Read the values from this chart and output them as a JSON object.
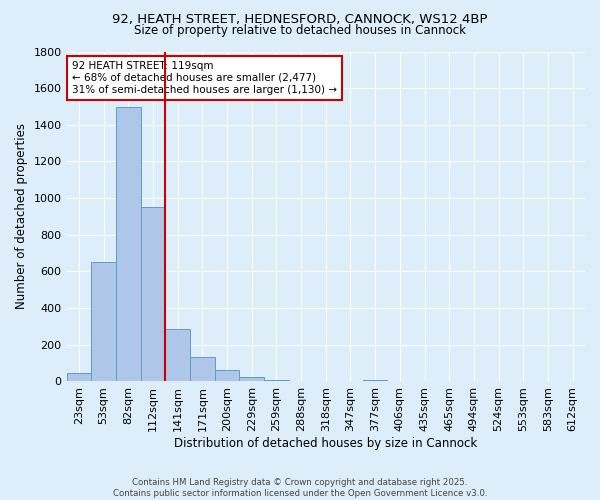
{
  "title_line1": "92, HEATH STREET, HEDNESFORD, CANNOCK, WS12 4BP",
  "title_line2": "Size of property relative to detached houses in Cannock",
  "xlabel": "Distribution of detached houses by size in Cannock",
  "ylabel": "Number of detached properties",
  "bar_labels": [
    "23sqm",
    "53sqm",
    "82sqm",
    "112sqm",
    "141sqm",
    "171sqm",
    "200sqm",
    "229sqm",
    "259sqm",
    "288sqm",
    "318sqm",
    "347sqm",
    "377sqm",
    "406sqm",
    "435sqm",
    "465sqm",
    "494sqm",
    "524sqm",
    "553sqm",
    "583sqm",
    "612sqm"
  ],
  "bar_values": [
    47,
    651,
    1497,
    951,
    286,
    136,
    62,
    25,
    8,
    3,
    2,
    1,
    10,
    0,
    0,
    0,
    0,
    0,
    0,
    0,
    0
  ],
  "bar_color": "#aec6e8",
  "bar_edgecolor": "#5a9ec9",
  "bg_color": "#ddeefa",
  "grid_color": "#ffffff",
  "vline_x": 3.5,
  "vline_color": "#cc0000",
  "annotation_text": "92 HEATH STREET: 119sqm\n← 68% of detached houses are smaller (2,477)\n31% of semi-detached houses are larger (1,130) →",
  "annotation_box_facecolor": "#ffffff",
  "annotation_box_edgecolor": "#cc0000",
  "ylim": [
    0,
    1800
  ],
  "yticks": [
    0,
    200,
    400,
    600,
    800,
    1000,
    1200,
    1400,
    1600,
    1800
  ],
  "footer_line1": "Contains HM Land Registry data © Crown copyright and database right 2025.",
  "footer_line2": "Contains public sector information licensed under the Open Government Licence v3.0."
}
